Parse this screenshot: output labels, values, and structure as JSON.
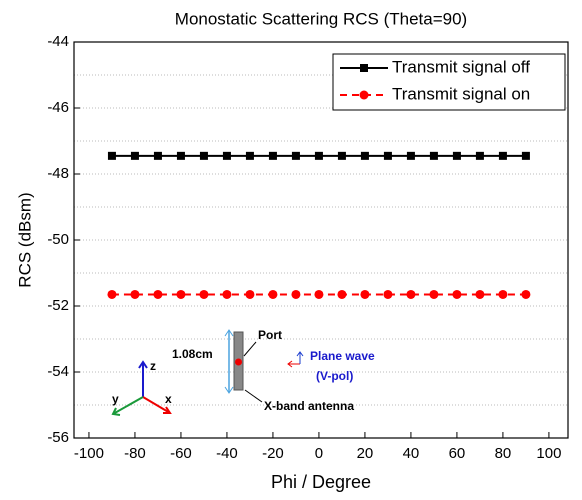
{
  "chart_data": {
    "type": "line",
    "title": "Monostatic Scattering RCS (Theta=90)",
    "x_label": "Phi / Degree",
    "y_label": "RCS (dBsm)",
    "x": [
      -90,
      -80,
      -70,
      -60,
      -50,
      -40,
      -30,
      -20,
      -10,
      0,
      10,
      20,
      30,
      40,
      50,
      60,
      70,
      80,
      90
    ],
    "series": [
      {
        "name": "Transmit signal off",
        "color": "#000000",
        "marker": "square",
        "dash": false,
        "values": [
          -47.45,
          -47.45,
          -47.45,
          -47.45,
          -47.45,
          -47.45,
          -47.45,
          -47.45,
          -47.45,
          -47.45,
          -47.45,
          -47.45,
          -47.45,
          -47.45,
          -47.45,
          -47.45,
          -47.45,
          -47.45,
          -47.45
        ]
      },
      {
        "name": "Transmit signal on",
        "color": "#ff0000",
        "marker": "circle",
        "dash": true,
        "values": [
          -51.65,
          -51.65,
          -51.65,
          -51.65,
          -51.65,
          -51.65,
          -51.65,
          -51.65,
          -51.65,
          -51.65,
          -51.65,
          -51.65,
          -51.65,
          -51.65,
          -51.65,
          -51.65,
          -51.65,
          -51.65,
          -51.65
        ]
      }
    ],
    "xlim": [
      -106.5,
      108.3
    ],
    "xticks": [
      -100,
      -80,
      -60,
      -40,
      -20,
      0,
      20,
      40,
      60,
      80,
      100
    ],
    "ylim": [
      -56,
      -44
    ],
    "yticks": [
      -56,
      -54,
      -52,
      -50,
      -48,
      -46,
      -44
    ],
    "y_minor_grid": [
      -55,
      -53,
      -51,
      -49,
      -47,
      -45
    ],
    "grid": true,
    "legend": "upper-right",
    "annotations": {
      "size": "1.08cm",
      "port": "Port",
      "antenna": "X-band antenna",
      "wave": "Plane wave",
      "pol": "(V-pol)",
      "z": "z",
      "y": "y",
      "x": "x"
    }
  }
}
